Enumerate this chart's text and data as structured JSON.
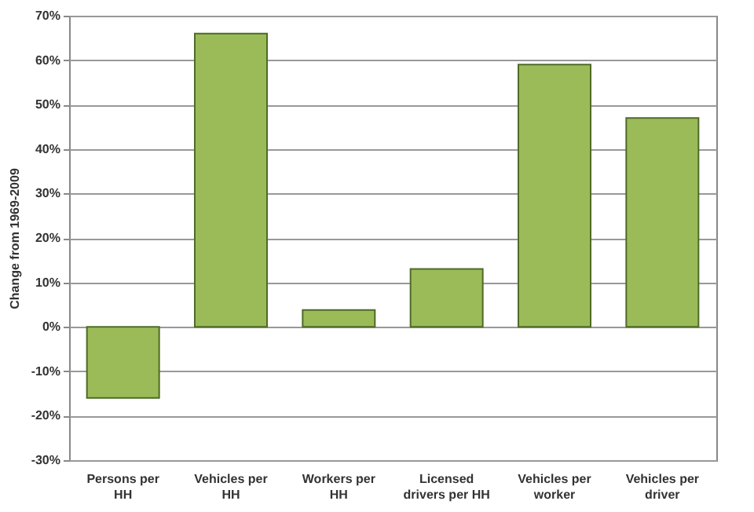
{
  "chart_data": {
    "type": "bar",
    "ylabel": "Change from 1969-2009",
    "categories": [
      "Persons per\nHH",
      "Vehicles per\nHH",
      "Workers per\nHH",
      "Licensed\ndrivers per HH",
      "Vehicles per\nworker",
      "Vehicles per\ndriver"
    ],
    "values": [
      -16,
      66,
      3.8,
      13,
      59,
      47
    ],
    "color": "#9bbb59",
    "ylim": [
      -30,
      70
    ],
    "yticks": [
      {
        "value": -30,
        "label": "-30%"
      },
      {
        "value": -20,
        "label": "-20%"
      },
      {
        "value": -10,
        "label": "-10%"
      },
      {
        "value": 0,
        "label": "0%"
      },
      {
        "value": 10,
        "label": "10%"
      },
      {
        "value": 20,
        "label": "20%"
      },
      {
        "value": 30,
        "label": "30%"
      },
      {
        "value": 40,
        "label": "40%"
      },
      {
        "value": 50,
        "label": "50%"
      },
      {
        "value": 60,
        "label": "60%"
      },
      {
        "value": 70,
        "label": "70%"
      }
    ],
    "grid": "y"
  }
}
